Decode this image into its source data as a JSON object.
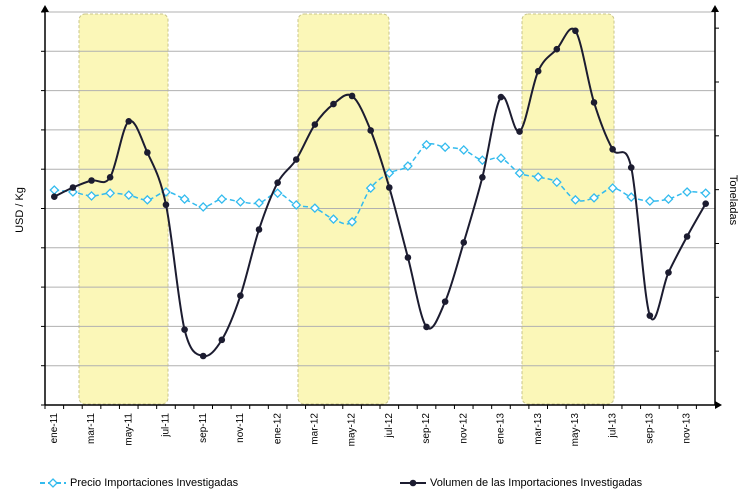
{
  "chart_data": {
    "type": "line",
    "y_label": "USD / Kg",
    "y2_label": "Toneladas",
    "categories": [
      "ene-11",
      null,
      "mar-11",
      null,
      "may-11",
      null,
      "jul-11",
      null,
      "sep-11",
      null,
      "nov-11",
      null,
      "ene-12",
      null,
      "mar-12",
      null,
      "may-12",
      null,
      "jul-12",
      null,
      "sep-12",
      null,
      "nov-12",
      null,
      "ene-13",
      null,
      "mar-13",
      null,
      "may-13",
      null,
      "jul-13",
      null,
      "sep-13",
      null,
      "nov-13",
      null
    ],
    "series": [
      {
        "name": "Precio Importaciones Investigadas",
        "color": "#33bbee",
        "marker": "diamond",
        "values": [
          5.47,
          5.42,
          5.32,
          5.39,
          5.34,
          5.22,
          5.42,
          5.24,
          5.04,
          5.24,
          5.17,
          5.14,
          5.39,
          5.09,
          5.01,
          4.73,
          4.66,
          5.52,
          5.9,
          6.08,
          6.62,
          6.56,
          6.49,
          6.23,
          6.28,
          5.9,
          5.8,
          5.67,
          5.22,
          5.27,
          5.52,
          5.29,
          5.19,
          5.24,
          5.42,
          5.39
        ]
      },
      {
        "name": "Volumen de las Importaciones Investigadas",
        "color": "#1c1c30",
        "marker": "circle",
        "axis": "y2",
        "values": [
          3.87,
          4.04,
          4.17,
          4.23,
          5.27,
          4.69,
          3.72,
          1.4,
          0.91,
          1.21,
          2.03,
          3.26,
          4.13,
          4.56,
          5.21,
          5.59,
          5.74,
          5.1,
          4.04,
          2.74,
          1.45,
          1.92,
          3.02,
          4.23,
          5.72,
          5.08,
          6.2,
          6.61,
          6.95,
          5.62,
          4.75,
          4.41,
          1.66,
          2.46,
          3.13,
          3.74
        ]
      }
    ],
    "ylim": [
      0,
      10
    ],
    "yticks": [
      0,
      1,
      2,
      3,
      4,
      5,
      6,
      7,
      8,
      9,
      10
    ],
    "y2lim": [
      0,
      7.3
    ],
    "y2ticks": [
      0,
      1,
      2,
      3,
      4,
      5,
      6,
      7
    ],
    "grid": true
  }
}
